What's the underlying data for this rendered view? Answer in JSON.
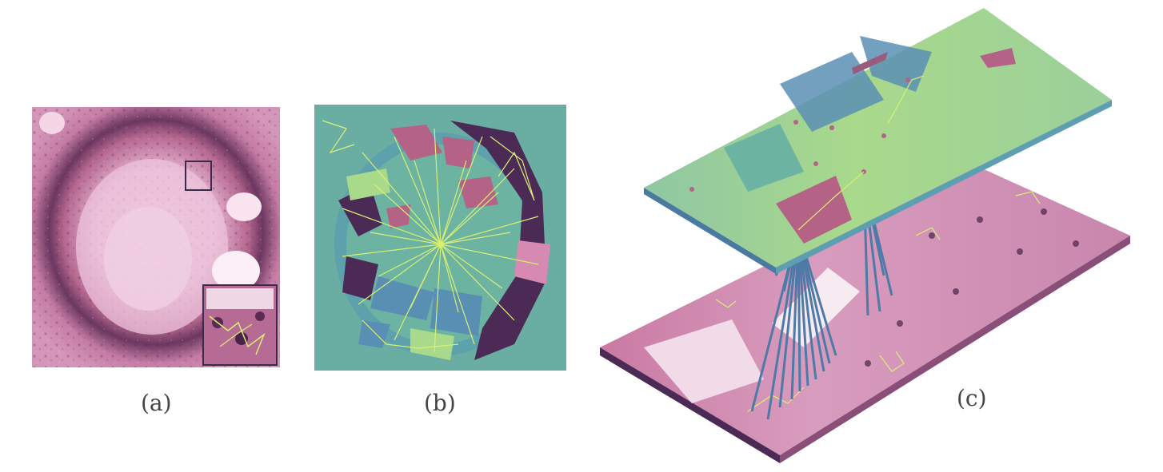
{
  "figure": {
    "captions": {
      "a": "(a)",
      "b": "(b)",
      "c": "(c)"
    },
    "colors": {
      "tissue_pink": "#c97aa2",
      "tissue_light": "#f1d1e3",
      "tissue_dark": "#5a2a52",
      "region_green": "#a9d98b",
      "region_teal": "#6db3a2",
      "region_blue": "#5a8fb4",
      "region_purple": "#4b2b55",
      "region_mauve": "#b46286",
      "edge_yellow": "#d8ef74",
      "connector_blue": "#4d7aa6"
    }
  }
}
